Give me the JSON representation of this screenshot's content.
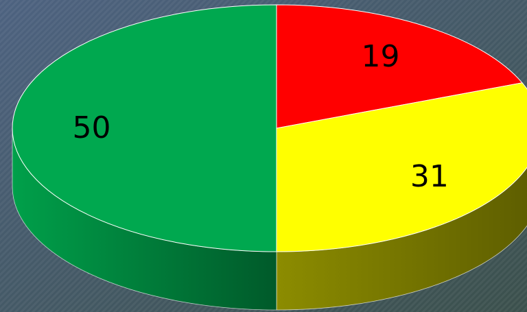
{
  "chart_data": {
    "type": "pie3d",
    "values": [
      19,
      31,
      50
    ],
    "colors": [
      "#ff0000",
      "#ffff00",
      "#00a84f"
    ],
    "side_colors": [
      [
        "#a00000",
        "#600000"
      ],
      [
        "#8c8c00",
        "#5c5c00"
      ],
      [
        "#00a04a",
        "#005a2a"
      ]
    ]
  }
}
